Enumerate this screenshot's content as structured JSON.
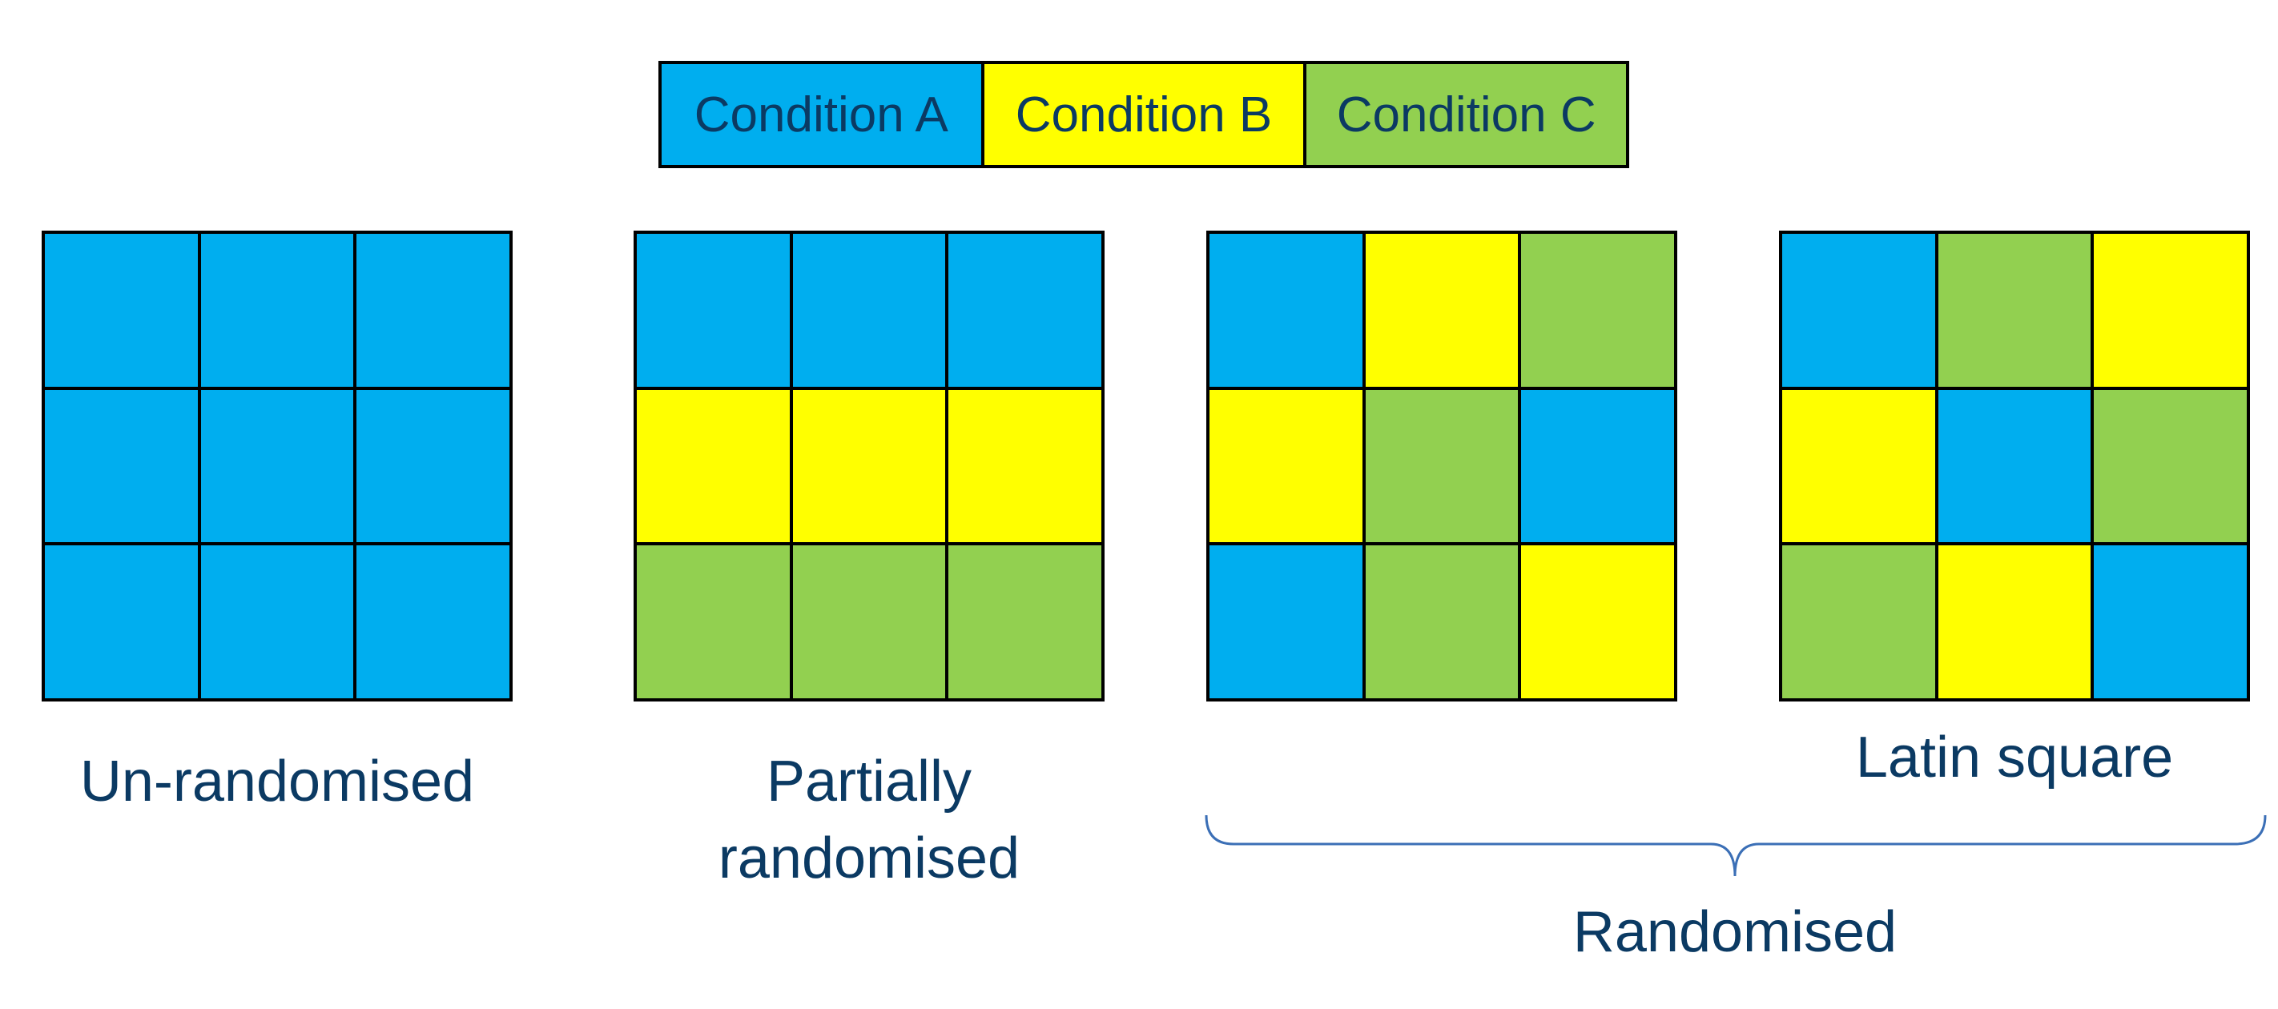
{
  "colors": {
    "A": "#00aeef",
    "B": "#ffff00",
    "C": "#92d050"
  },
  "legend": [
    {
      "key": "A",
      "label": "Condition A"
    },
    {
      "key": "B",
      "label": "Condition B"
    },
    {
      "key": "C",
      "label": "Condition C"
    }
  ],
  "grids": [
    {
      "id": "unrandomised",
      "cells": [
        "A",
        "A",
        "A",
        "A",
        "A",
        "A",
        "A",
        "A",
        "A"
      ]
    },
    {
      "id": "partially-randomised",
      "cells": [
        "A",
        "A",
        "A",
        "B",
        "B",
        "B",
        "C",
        "C",
        "C"
      ]
    },
    {
      "id": "randomised",
      "cells": [
        "A",
        "B",
        "C",
        "B",
        "C",
        "A",
        "A",
        "C",
        "B"
      ]
    },
    {
      "id": "latin-square",
      "cells": [
        "A",
        "C",
        "B",
        "B",
        "A",
        "C",
        "C",
        "B",
        "A"
      ]
    }
  ],
  "labels": {
    "unrandomised": "Un-randomised",
    "partially_line1": "Partially",
    "partially_line2": "randomised",
    "latin_square": "Latin square",
    "randomised_group": "Randomised"
  }
}
